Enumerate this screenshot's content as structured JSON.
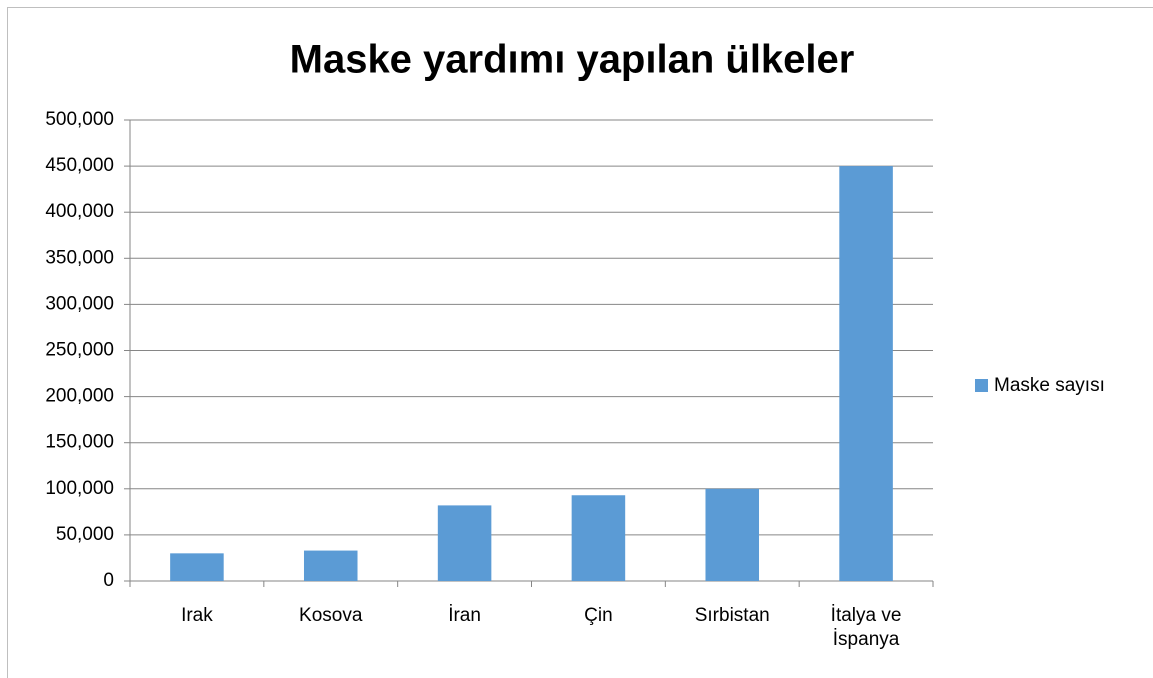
{
  "chart_data": {
    "type": "bar",
    "title": "Maske yardımı yapılan ülkeler",
    "categories": [
      "Irak",
      "Kosova",
      "İran",
      "Çin",
      "Sırbistan",
      "İtalya ve İspanya"
    ],
    "series": [
      {
        "name": "Maske sayısı",
        "color": "#5b9bd5",
        "values": [
          30000,
          33000,
          82000,
          93000,
          100000,
          450000
        ]
      }
    ],
    "ylim": [
      0,
      500000
    ],
    "yticks": [
      0,
      {
        "value": 50000,
        "label": "50,000"
      },
      {
        "value": 100000,
        "label": "100,000"
      },
      {
        "value": 150000,
        "label": "150,000"
      },
      {
        "value": 200000,
        "label": "200,000"
      },
      {
        "value": 250000,
        "label": "250,000"
      },
      {
        "value": 300000,
        "label": "300,000"
      },
      {
        "value": 350000,
        "label": "350,000"
      },
      {
        "value": 400000,
        "label": "400,000"
      },
      {
        "value": 450000,
        "label": "450,000"
      },
      {
        "value": 500000,
        "label": "500,000"
      }
    ],
    "grid": true,
    "legend": "right"
  }
}
